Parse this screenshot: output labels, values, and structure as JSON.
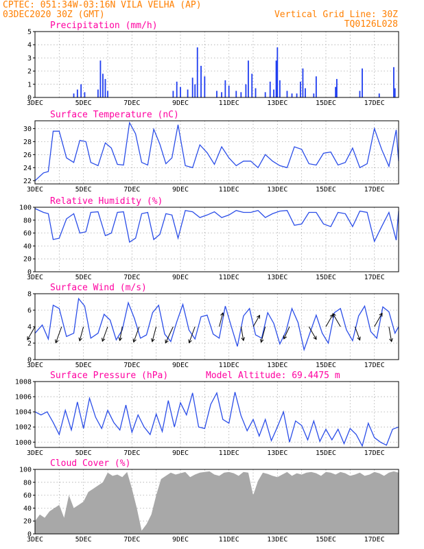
{
  "header": {
    "line1_left": "CPTEC:   051:34W-03:16N  VILA VELHA (AP)",
    "line2_left": "03DEC2020 30Z (GMT)",
    "line1_right": "Vertical Grid Line: 30Z",
    "line2_right": "TQ0126L028"
  },
  "colors": {
    "header": "#ff7f00",
    "title": "#ff00a0",
    "series": "#2a4de8",
    "bars": "#1f3df0",
    "cloud": "#a8a8a8"
  },
  "x_tick_labels": [
    "3DEC",
    "5DEC",
    "7DEC",
    "9DEC",
    "11DEC",
    "13DEC",
    "15DEC",
    "17DEC"
  ],
  "chart_data": [
    {
      "type": "bar",
      "title": "Precipitation (mm/h)",
      "ylim": [
        0,
        5
      ],
      "yticks": [
        0,
        1,
        2,
        3,
        4,
        5
      ],
      "grid": true,
      "x_unit": "days since 3DEC 00Z",
      "x_range": [
        0,
        15
      ],
      "events": [
        [
          1.6,
          0.3
        ],
        [
          1.75,
          0.6
        ],
        [
          1.9,
          1.0
        ],
        [
          2.05,
          0.4
        ],
        [
          2.6,
          0.6
        ],
        [
          2.7,
          2.8
        ],
        [
          2.8,
          1.8
        ],
        [
          2.9,
          1.4
        ],
        [
          3.0,
          0.5
        ],
        [
          5.7,
          0.5
        ],
        [
          5.85,
          1.2
        ],
        [
          6.0,
          0.8
        ],
        [
          6.3,
          0.6
        ],
        [
          6.5,
          1.5
        ],
        [
          6.6,
          1.0
        ],
        [
          6.7,
          3.8
        ],
        [
          6.85,
          2.4
        ],
        [
          7.0,
          1.6
        ],
        [
          7.5,
          0.5
        ],
        [
          7.7,
          0.4
        ],
        [
          7.85,
          1.3
        ],
        [
          8.0,
          0.9
        ],
        [
          8.3,
          0.5
        ],
        [
          8.5,
          0.4
        ],
        [
          8.7,
          1.0
        ],
        [
          8.8,
          2.8
        ],
        [
          8.95,
          1.8
        ],
        [
          9.1,
          0.7
        ],
        [
          9.5,
          0.4
        ],
        [
          9.7,
          1.2
        ],
        [
          9.85,
          0.6
        ],
        [
          9.95,
          2.8
        ],
        [
          10.0,
          3.8
        ],
        [
          10.1,
          1.3
        ],
        [
          10.4,
          0.5
        ],
        [
          10.6,
          0.3
        ],
        [
          10.8,
          0.3
        ],
        [
          10.95,
          1.2
        ],
        [
          11.05,
          2.2
        ],
        [
          11.15,
          0.7
        ],
        [
          11.5,
          0.3
        ],
        [
          11.6,
          1.6
        ],
        [
          12.4,
          0.8
        ],
        [
          12.45,
          1.4
        ],
        [
          13.4,
          0.5
        ],
        [
          13.5,
          2.2
        ],
        [
          14.2,
          0.3
        ],
        [
          14.8,
          2.3
        ],
        [
          14.85,
          0.7
        ]
      ]
    },
    {
      "type": "line",
      "title": "Surface Temperature (nC)",
      "ylim": [
        21.5,
        31.2
      ],
      "yticks": [
        22,
        24,
        26,
        28,
        30
      ],
      "grid": true,
      "x_unit": "days since 3DEC 00Z",
      "series": [
        {
          "x": [
            0,
            0.35,
            0.55,
            0.75,
            1.0,
            1.3,
            1.6,
            1.85,
            2.1,
            2.3,
            2.6,
            2.9,
            3.15,
            3.4,
            3.65,
            3.9,
            4.15,
            4.4,
            4.65,
            4.9,
            5.15,
            5.4,
            5.65,
            5.9,
            6.2,
            6.5,
            6.8,
            7.1,
            7.4,
            7.7,
            8.0,
            8.3,
            8.6,
            8.9,
            9.2,
            9.5,
            9.8,
            10.1,
            10.4,
            10.7,
            11.0,
            11.3,
            11.6,
            11.9,
            12.2,
            12.5,
            12.8,
            13.1,
            13.4,
            13.7,
            14.0,
            14.3,
            14.6,
            14.9,
            15.0
          ],
          "y": [
            22.0,
            23.2,
            23.4,
            29.6,
            29.6,
            25.5,
            24.8,
            28.2,
            28.0,
            24.8,
            24.3,
            27.8,
            27.0,
            24.5,
            24.4,
            30.9,
            29.2,
            24.8,
            24.4,
            29.9,
            27.6,
            24.6,
            25.5,
            30.6,
            24.3,
            24.0,
            27.5,
            26.3,
            24.5,
            27.2,
            25.5,
            24.3,
            25.0,
            25.0,
            24.0,
            26.0,
            25.0,
            24.3,
            24.0,
            27.2,
            26.8,
            24.6,
            24.4,
            26.2,
            26.4,
            24.4,
            24.8,
            27.0,
            24.0,
            24.6,
            30.0,
            26.8,
            24.2,
            29.8,
            25.0
          ]
        }
      ]
    },
    {
      "type": "line",
      "title": "Relative Humidity (%)",
      "ylim": [
        0,
        100
      ],
      "yticks": [
        0,
        20,
        40,
        60,
        80,
        100
      ],
      "grid": true,
      "x_unit": "days since 3DEC 00Z",
      "series": [
        {
          "x": [
            0,
            0.35,
            0.55,
            0.75,
            1.0,
            1.3,
            1.6,
            1.85,
            2.1,
            2.3,
            2.6,
            2.9,
            3.15,
            3.4,
            3.65,
            3.9,
            4.15,
            4.4,
            4.65,
            4.9,
            5.15,
            5.4,
            5.65,
            5.9,
            6.2,
            6.5,
            6.8,
            7.1,
            7.4,
            7.7,
            8.0,
            8.3,
            8.6,
            8.9,
            9.2,
            9.5,
            9.8,
            10.1,
            10.4,
            10.7,
            11.0,
            11.3,
            11.6,
            11.9,
            12.2,
            12.5,
            12.8,
            13.1,
            13.4,
            13.7,
            14.0,
            14.3,
            14.6,
            14.9,
            15.0
          ],
          "y": [
            98,
            92,
            90,
            50,
            52,
            82,
            90,
            60,
            62,
            92,
            93,
            56,
            60,
            92,
            93,
            46,
            52,
            90,
            92,
            50,
            58,
            90,
            88,
            52,
            95,
            93,
            84,
            88,
            93,
            84,
            88,
            95,
            92,
            92,
            95,
            84,
            90,
            94,
            95,
            72,
            74,
            92,
            92,
            74,
            70,
            92,
            90,
            70,
            94,
            92,
            47,
            70,
            92,
            49,
            94
          ]
        }
      ]
    },
    {
      "type": "line",
      "title": "Surface Wind (m/s)",
      "ylim": [
        0,
        8
      ],
      "yticks": [
        0,
        2,
        4,
        6,
        8
      ],
      "grid": true,
      "x_unit": "days since 3DEC 00Z",
      "series": [
        {
          "x": [
            0,
            0.3,
            0.55,
            0.75,
            1.0,
            1.3,
            1.6,
            1.8,
            2.05,
            2.3,
            2.6,
            2.85,
            3.1,
            3.35,
            3.6,
            3.85,
            4.1,
            4.35,
            4.6,
            4.85,
            5.1,
            5.35,
            5.6,
            5.85,
            6.1,
            6.35,
            6.6,
            6.85,
            7.1,
            7.35,
            7.6,
            7.85,
            8.1,
            8.35,
            8.6,
            8.85,
            9.1,
            9.35,
            9.6,
            9.85,
            10.1,
            10.35,
            10.6,
            10.85,
            11.1,
            11.35,
            11.6,
            11.85,
            12.1,
            12.35,
            12.6,
            12.85,
            13.1,
            13.35,
            13.6,
            13.85,
            14.1,
            14.35,
            14.6,
            14.85,
            15.0
          ],
          "y": [
            3.2,
            4.2,
            2.5,
            6.6,
            6.2,
            2.8,
            3.2,
            7.4,
            6.5,
            2.6,
            3.2,
            5.5,
            4.8,
            2.4,
            3.6,
            6.9,
            5.0,
            2.6,
            3.0,
            5.7,
            6.6,
            3.1,
            2.2,
            4.6,
            6.7,
            3.6,
            2.5,
            5.2,
            5.4,
            3.1,
            2.6,
            6.5,
            4.0,
            1.6,
            5.3,
            6.2,
            3.0,
            2.6,
            5.7,
            4.4,
            1.9,
            3.4,
            6.2,
            4.5,
            1.2,
            3.3,
            5.4,
            3.2,
            2.0,
            5.7,
            6.2,
            3.6,
            2.3,
            5.3,
            6.5,
            3.4,
            2.6,
            6.4,
            5.8,
            3.2,
            4.0
          ]
        }
      ],
      "vectors_x": [
        0,
        1.1,
        2.0,
        3.0,
        3.6,
        4.3,
        5.0,
        5.7,
        6.6,
        7.6,
        8.5,
        9.0,
        9.5,
        10.5,
        11.3,
        12.0,
        12.6,
        13.2,
        14.0,
        14.6
      ],
      "vectors_speed": [
        4.0,
        5.0,
        3.8,
        4.2,
        3.5,
        4.6,
        4.2,
        5.4,
        5.0,
        3.6,
        3.5,
        3.0,
        4.5,
        3.2,
        3.8,
        3.5,
        4.0,
        3.6,
        4.2,
        4.0
      ],
      "vectors_dir_deg": [
        240,
        250,
        255,
        250,
        260,
        250,
        255,
        245,
        250,
        75,
        280,
        60,
        255,
        245,
        300,
        60,
        120,
        290,
        60,
        280
      ]
    },
    {
      "type": "line",
      "title": "Surface Pressure (hPa)",
      "annotation": "Model Altitude: 69.4475 m",
      "ylim": [
        999.3,
        1008
      ],
      "yticks": [
        1000,
        1002,
        1004,
        1006,
        1008
      ],
      "grid": true,
      "x_unit": "days since 3DEC 00Z",
      "series": [
        {
          "x": [
            0,
            0.25,
            0.5,
            0.75,
            1.0,
            1.25,
            1.5,
            1.75,
            2.0,
            2.25,
            2.5,
            2.75,
            3.0,
            3.25,
            3.5,
            3.75,
            4.0,
            4.25,
            4.5,
            4.75,
            5.0,
            5.25,
            5.5,
            5.75,
            6.0,
            6.25,
            6.5,
            6.75,
            7.0,
            7.25,
            7.5,
            7.75,
            8.0,
            8.25,
            8.5,
            8.75,
            9.0,
            9.25,
            9.5,
            9.75,
            10.0,
            10.25,
            10.5,
            10.75,
            11.0,
            11.25,
            11.5,
            11.75,
            12.0,
            12.25,
            12.5,
            12.75,
            13.0,
            13.25,
            13.5,
            13.75,
            14.0,
            14.25,
            14.5,
            14.75,
            15.0
          ],
          "y": [
            1004.0,
            1003.6,
            1004.0,
            1002.6,
            1001.0,
            1004.2,
            1001.6,
            1005.3,
            1001.8,
            1005.8,
            1003.3,
            1001.8,
            1004.2,
            1002.6,
            1001.6,
            1004.9,
            1001.3,
            1003.6,
            1002.0,
            1001.0,
            1003.7,
            1001.4,
            1005.5,
            1002.0,
            1005.2,
            1003.6,
            1006.5,
            1002.0,
            1001.8,
            1005.0,
            1006.5,
            1003.0,
            1002.5,
            1006.6,
            1003.5,
            1001.5,
            1003.0,
            1000.8,
            1003.0,
            1000.2,
            1002.0,
            1004.0,
            1000.0,
            1002.8,
            1002.2,
            1000.3,
            1002.8,
            1000.1,
            1001.7,
            1000.3,
            1001.7,
            999.8,
            1001.8,
            1001.0,
            999.5,
            1002.5,
            1000.6,
            1000.0,
            999.6,
            1001.7,
            1002.0
          ]
        }
      ]
    },
    {
      "type": "area",
      "title": "Cloud Cover (%)",
      "ylim": [
        0,
        100
      ],
      "yticks": [
        0,
        20,
        40,
        60,
        80,
        100
      ],
      "grid": true,
      "x_unit": "days since 3DEC 00Z",
      "series": [
        {
          "x": [
            0,
            0.2,
            0.4,
            0.6,
            0.8,
            1.0,
            1.2,
            1.4,
            1.6,
            1.8,
            2.0,
            2.2,
            2.4,
            2.6,
            2.8,
            3.0,
            3.2,
            3.4,
            3.6,
            3.8,
            4.0,
            4.2,
            4.4,
            4.6,
            4.8,
            5.0,
            5.2,
            5.4,
            5.6,
            5.8,
            6.0,
            6.2,
            6.4,
            6.6,
            6.8,
            7.0,
            7.2,
            7.4,
            7.6,
            7.8,
            8.0,
            8.2,
            8.4,
            8.6,
            8.8,
            9.0,
            9.2,
            9.4,
            9.6,
            9.8,
            10.0,
            10.2,
            10.4,
            10.6,
            10.8,
            11.0,
            11.2,
            11.4,
            11.6,
            11.8,
            12.0,
            12.2,
            12.4,
            12.6,
            12.8,
            13.0,
            13.2,
            13.4,
            13.6,
            13.8,
            14.0,
            14.2,
            14.4,
            14.6,
            14.8,
            15.0
          ],
          "y": [
            20,
            30,
            25,
            35,
            40,
            45,
            25,
            60,
            40,
            45,
            50,
            65,
            70,
            75,
            80,
            95,
            90,
            92,
            88,
            96,
            70,
            40,
            5,
            15,
            30,
            60,
            85,
            90,
            95,
            92,
            94,
            96,
            88,
            92,
            95,
            96,
            97,
            92,
            90,
            95,
            96,
            94,
            90,
            96,
            95,
            60,
            82,
            95,
            93,
            90,
            88,
            92,
            96,
            90,
            94,
            92,
            95,
            96,
            94,
            90,
            96,
            95,
            92,
            96,
            94,
            90,
            92,
            95,
            90,
            92,
            96,
            94,
            90,
            95,
            97,
            95
          ]
        }
      ]
    }
  ]
}
